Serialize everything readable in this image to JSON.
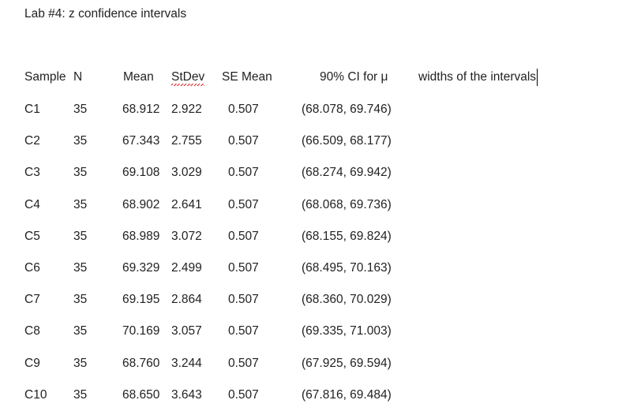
{
  "header": {
    "title": "Lab #4:  z confidence intervals"
  },
  "table": {
    "columns": [
      "Sample",
      "N",
      "Mean",
      "StDev",
      "SE Mean",
      "90% CI for μ",
      "widths of the intervals"
    ],
    "rows": [
      [
        "C1",
        "35",
        "68.912",
        "2.922",
        "0.507",
        "(68.078, 69.746)"
      ],
      [
        "C2",
        "35",
        "67.343",
        "2.755",
        "0.507",
        "(66.509, 68.177)"
      ],
      [
        "C3",
        "35",
        "69.108",
        "3.029",
        "0.507",
        "(68.274, 69.942)"
      ],
      [
        "C4",
        "35",
        "68.902",
        "2.641",
        "0.507",
        "(68.068, 69.736)"
      ],
      [
        "C5",
        "35",
        "68.989",
        "3.072",
        "0.507",
        "(68.155, 69.824)"
      ],
      [
        "C6",
        "35",
        "69.329",
        "2.499",
        "0.507",
        "(68.495, 70.163)"
      ],
      [
        "C7",
        "35",
        "69.195",
        "2.864",
        "0.507",
        "(68.360, 70.029)"
      ],
      [
        "C8",
        "35",
        "70.169",
        "3.057",
        "0.507",
        "(69.335, 71.003)"
      ],
      [
        "C9",
        "35",
        "68.760",
        "3.244",
        "0.507",
        "(67.925, 69.594)"
      ],
      [
        "C10",
        "35",
        "68.650",
        "3.643",
        "0.507",
        "(67.816, 69.484)"
      ]
    ]
  }
}
